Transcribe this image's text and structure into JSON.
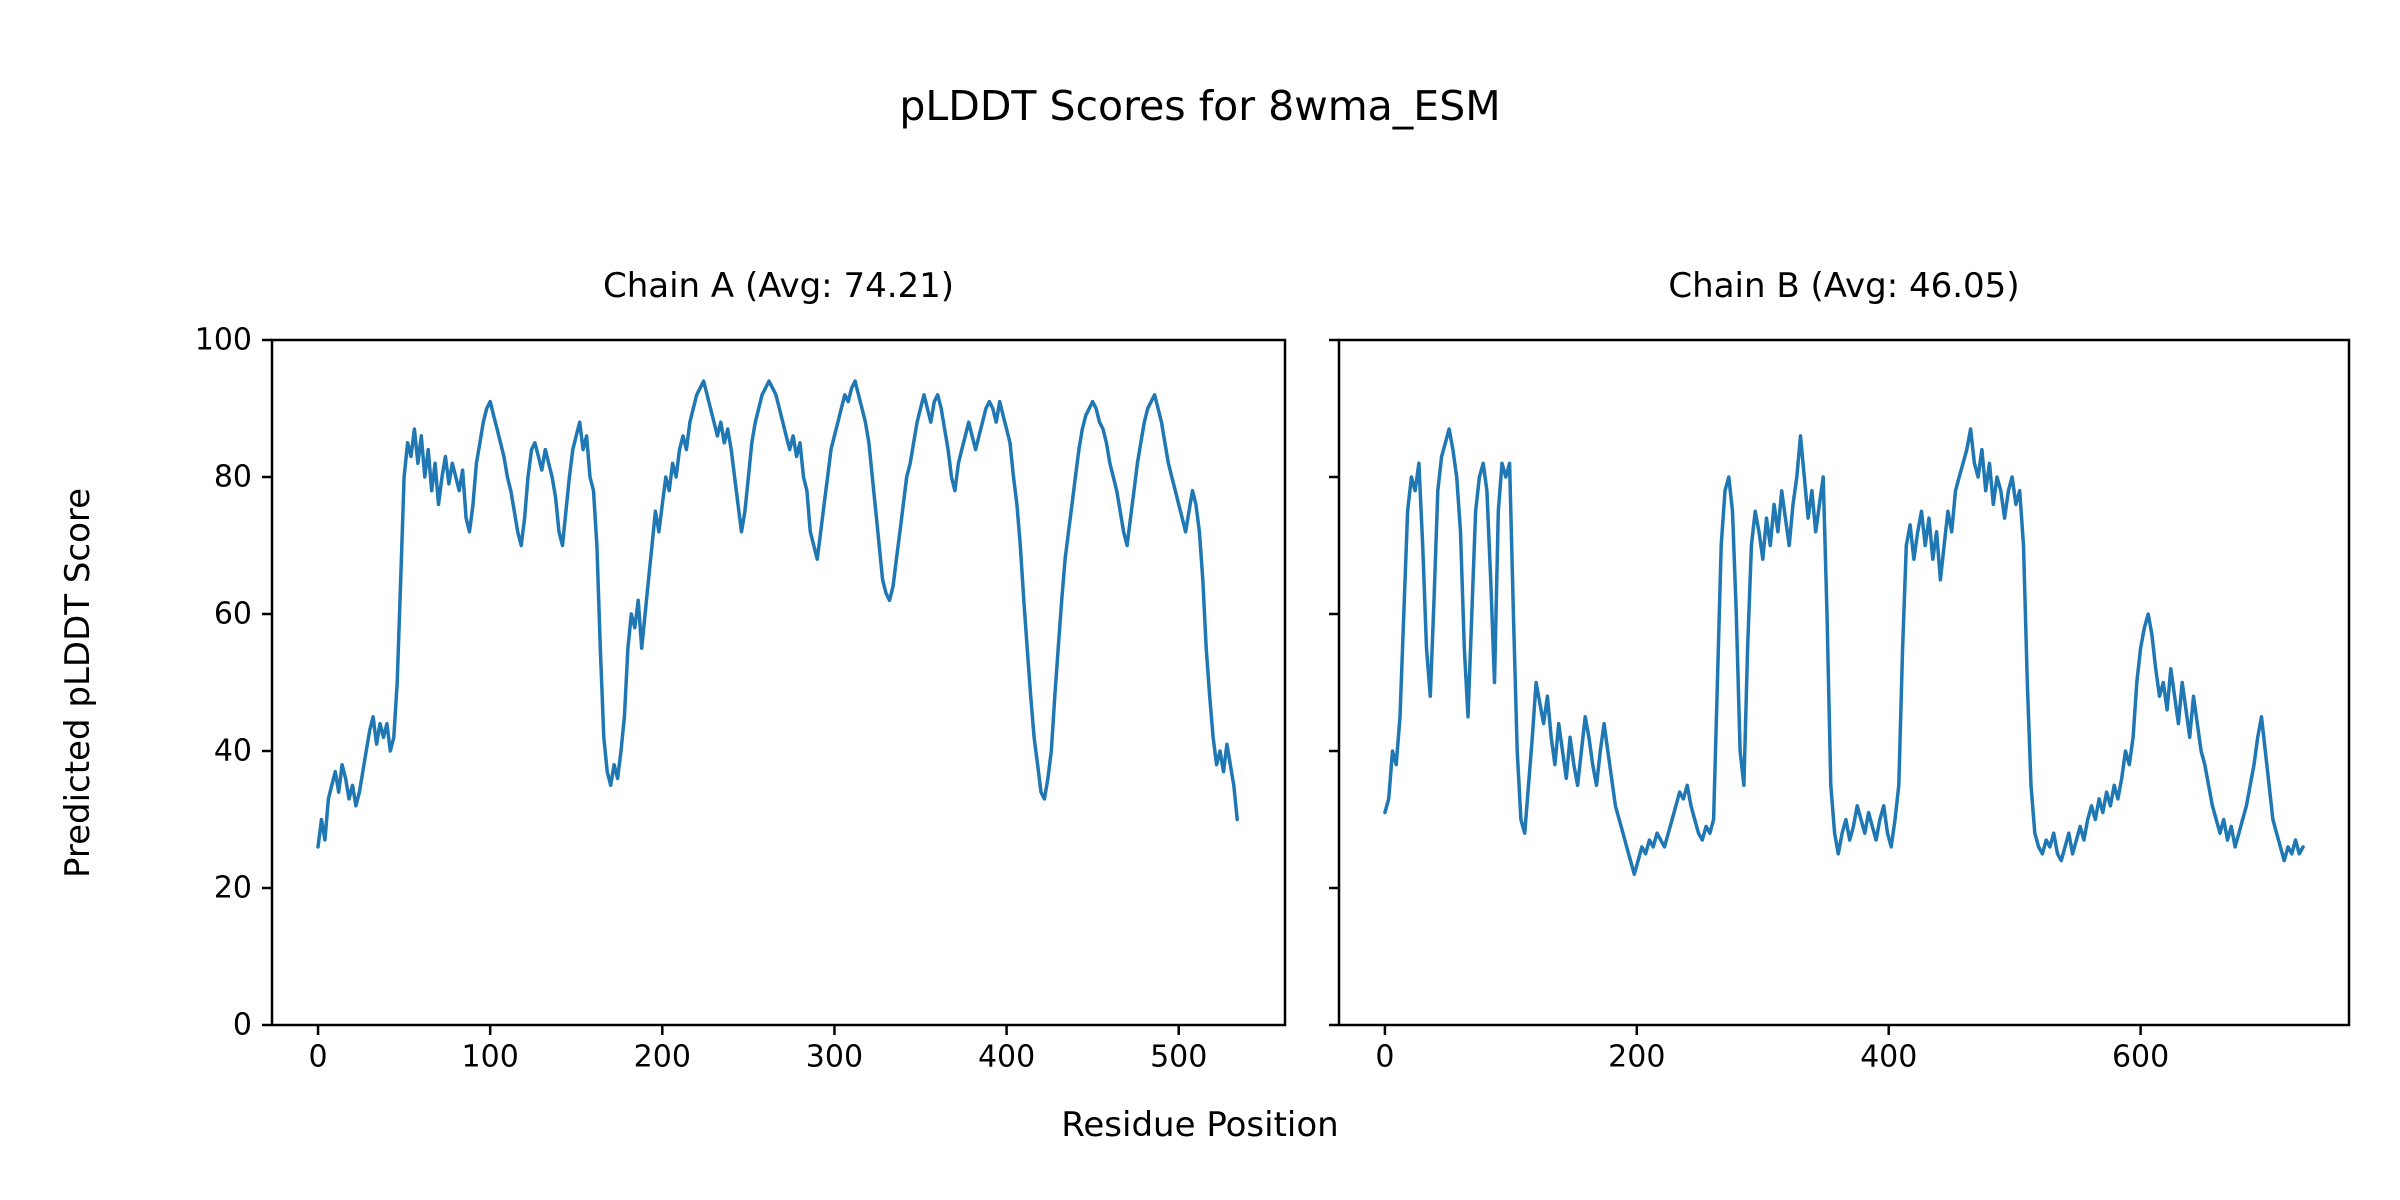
{
  "chart_data": {
    "type": "line",
    "title": "pLDDT Scores for 8wma_ESM",
    "xlabel": "Residue Position",
    "ylabel": "Predicted pLDDT Score",
    "line_color": "#1f77b4",
    "grid": false,
    "legend": "none",
    "ylim": [
      0,
      100
    ],
    "yticks": [
      0,
      20,
      40,
      60,
      80,
      100
    ],
    "subplots": [
      {
        "name": "chain-a",
        "title": "Chain A (Avg: 74.21)",
        "avg": 74.21,
        "xticks": [
          0,
          100,
          200,
          300,
          400,
          500
        ],
        "xlim": [
          -26.75,
          561.75
        ],
        "x_start": 0,
        "x_step": 2,
        "x_end": 534,
        "show_ytick_labels": true,
        "y": [
          26,
          30,
          27,
          33,
          35,
          37,
          34,
          38,
          36,
          33,
          35,
          32,
          34,
          37,
          40,
          43,
          45,
          41,
          44,
          42,
          44,
          40,
          42,
          50,
          65,
          80,
          85,
          83,
          87,
          82,
          86,
          80,
          84,
          78,
          82,
          76,
          80,
          83,
          79,
          82,
          80,
          78,
          81,
          74,
          72,
          76,
          82,
          85,
          88,
          90,
          91,
          89,
          87,
          85,
          83,
          80,
          78,
          75,
          72,
          70,
          74,
          80,
          84,
          85,
          83,
          81,
          84,
          82,
          80,
          77,
          72,
          70,
          75,
          80,
          84,
          86,
          88,
          84,
          86,
          80,
          78,
          70,
          55,
          42,
          37,
          35,
          38,
          36,
          40,
          45,
          55,
          60,
          58,
          62,
          55,
          60,
          65,
          70,
          75,
          72,
          76,
          80,
          78,
          82,
          80,
          84,
          86,
          84,
          88,
          90,
          92,
          93,
          94,
          92,
          90,
          88,
          86,
          88,
          85,
          87,
          84,
          80,
          76,
          72,
          75,
          80,
          85,
          88,
          90,
          92,
          93,
          94,
          93,
          92,
          90,
          88,
          86,
          84,
          86,
          83,
          85,
          80,
          78,
          72,
          70,
          68,
          72,
          76,
          80,
          84,
          86,
          88,
          90,
          92,
          91,
          93,
          94,
          92,
          90,
          88,
          85,
          80,
          75,
          70,
          65,
          63,
          62,
          64,
          68,
          72,
          76,
          80,
          82,
          85,
          88,
          90,
          92,
          90,
          88,
          91,
          92,
          90,
          87,
          84,
          80,
          78,
          82,
          84,
          86,
          88,
          86,
          84,
          86,
          88,
          90,
          91,
          90,
          88,
          91,
          89,
          87,
          85,
          80,
          76,
          70,
          62,
          55,
          48,
          42,
          38,
          34,
          33,
          36,
          40,
          48,
          55,
          62,
          68,
          72,
          76,
          80,
          84,
          87,
          89,
          90,
          91,
          90,
          88,
          87,
          85,
          82,
          80,
          78,
          75,
          72,
          70,
          74,
          78,
          82,
          85,
          88,
          90,
          91,
          92,
          90,
          88,
          85,
          82,
          80,
          78,
          76,
          74,
          72,
          75,
          78,
          76,
          72,
          65,
          55,
          48,
          42,
          38,
          40,
          37,
          41,
          38,
          35,
          30
        ]
      },
      {
        "name": "chain-b",
        "title": "Chain B (Avg: 46.05)",
        "avg": 46.05,
        "xticks": [
          0,
          200,
          400,
          600
        ],
        "xlim": [
          -36.45,
          765.45
        ],
        "x_start": 0,
        "x_step": 3,
        "x_end": 729,
        "show_ytick_labels": false,
        "y": [
          31,
          33,
          40,
          38,
          45,
          60,
          75,
          80,
          78,
          82,
          70,
          55,
          48,
          62,
          78,
          83,
          85,
          87,
          84,
          80,
          72,
          55,
          45,
          60,
          75,
          80,
          82,
          78,
          65,
          50,
          75,
          82,
          80,
          82,
          60,
          40,
          30,
          28,
          35,
          42,
          50,
          47,
          44,
          48,
          42,
          38,
          44,
          40,
          36,
          42,
          38,
          35,
          40,
          45,
          42,
          38,
          35,
          40,
          44,
          40,
          36,
          32,
          30,
          28,
          26,
          24,
          22,
          24,
          26,
          25,
          27,
          26,
          28,
          27,
          26,
          28,
          30,
          32,
          34,
          33,
          35,
          32,
          30,
          28,
          27,
          29,
          28,
          30,
          50,
          70,
          78,
          80,
          75,
          60,
          40,
          35,
          55,
          70,
          75,
          72,
          68,
          74,
          70,
          76,
          72,
          78,
          74,
          70,
          76,
          80,
          86,
          80,
          74,
          78,
          72,
          76,
          80,
          60,
          35,
          28,
          25,
          28,
          30,
          27,
          29,
          32,
          30,
          28,
          31,
          29,
          27,
          30,
          32,
          28,
          26,
          30,
          35,
          55,
          70,
          73,
          68,
          72,
          75,
          70,
          74,
          68,
          72,
          65,
          70,
          75,
          72,
          78,
          80,
          82,
          84,
          87,
          82,
          80,
          84,
          78,
          82,
          76,
          80,
          78,
          74,
          78,
          80,
          76,
          78,
          70,
          50,
          35,
          28,
          26,
          25,
          27,
          26,
          28,
          25,
          24,
          26,
          28,
          25,
          27,
          29,
          27,
          30,
          32,
          30,
          33,
          31,
          34,
          32,
          35,
          33,
          36,
          40,
          38,
          42,
          50,
          55,
          58,
          60,
          57,
          52,
          48,
          50,
          46,
          52,
          48,
          44,
          50,
          46,
          42,
          48,
          44,
          40,
          38,
          35,
          32,
          30,
          28,
          30,
          27,
          29,
          26,
          28,
          30,
          32,
          35,
          38,
          42,
          45,
          40,
          35,
          30,
          28,
          26,
          24,
          26,
          25,
          27,
          25,
          26
        ]
      }
    ]
  }
}
